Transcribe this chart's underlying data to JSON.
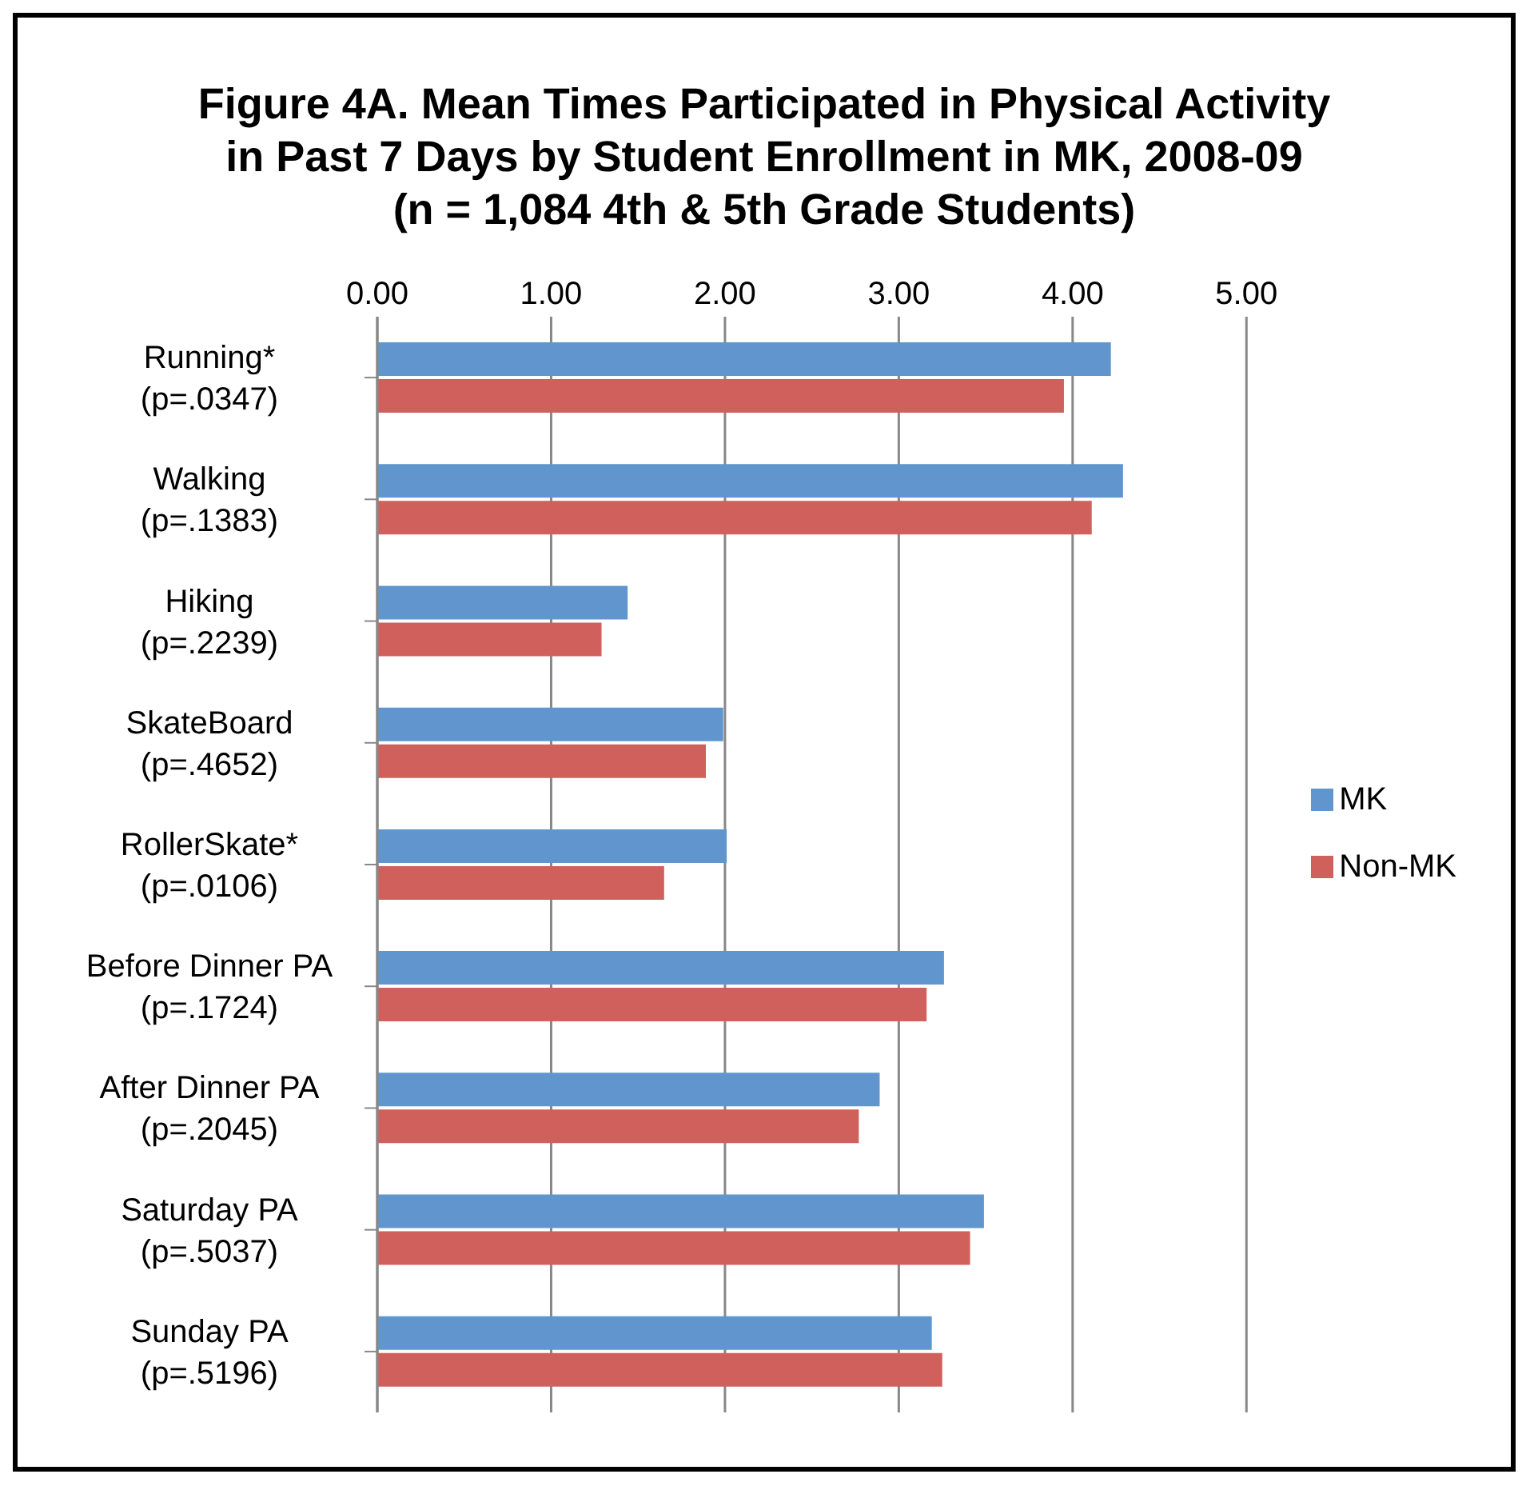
{
  "chart_data": {
    "type": "bar",
    "orientation": "horizontal",
    "title": "Figure 4A. Mean Times Participated in Physical Activity\nin Past 7 Days by Student Enrollment in MK, 2008-09\n(n = 1,084 4th & 5th Grade Students)",
    "categories": [
      "Running*\n(p=.0347)",
      "Walking\n(p=.1383)",
      "Hiking\n(p=.2239)",
      "SkateBoard\n(p=.4652)",
      "RollerSkate*\n(p=.0106)",
      "Before Dinner PA\n(p=.1724)",
      "After Dinner PA\n(p=.2045)",
      "Saturday PA\n(p=.5037)",
      "Sunday PA\n(p=.5196)"
    ],
    "series": [
      {
        "name": "MK",
        "color": "#6096cd",
        "values": [
          4.22,
          4.29,
          1.44,
          1.99,
          2.01,
          3.26,
          2.89,
          3.49,
          3.19
        ]
      },
      {
        "name": "Non-MK",
        "color": "#d0605c",
        "values": [
          3.95,
          4.11,
          1.29,
          1.89,
          1.65,
          3.16,
          2.77,
          3.41,
          3.25
        ]
      }
    ],
    "xlim": [
      0,
      5
    ],
    "xticks": [
      {
        "value": 0,
        "label": "0.00"
      },
      {
        "value": 1,
        "label": "1.00"
      },
      {
        "value": 2,
        "label": "2.00"
      },
      {
        "value": 3,
        "label": "3.00"
      },
      {
        "value": 4,
        "label": "4.00"
      },
      {
        "value": 5,
        "label": "5.00"
      }
    ],
    "grid": "x",
    "legend": "right"
  }
}
